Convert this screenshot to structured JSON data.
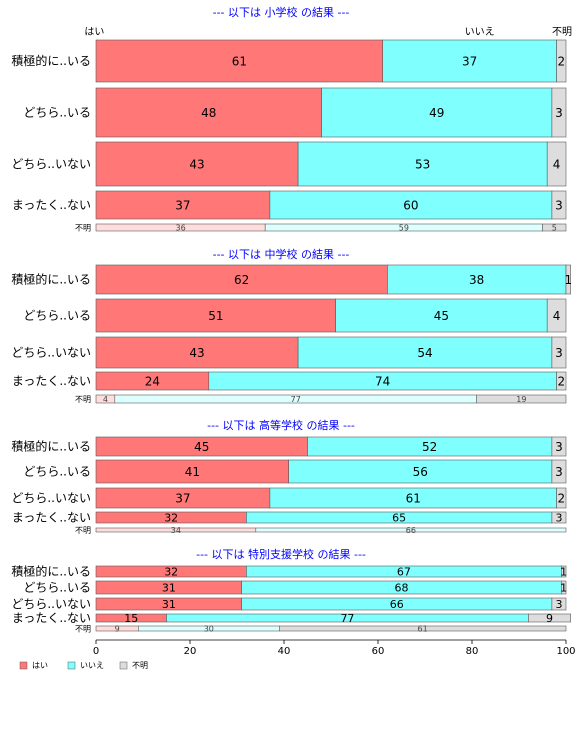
{
  "chart_data": {
    "type": "bar",
    "orientation": "horizontal",
    "stacked": true,
    "percent": true,
    "columns": [
      "はい",
      "いいえ",
      "不明"
    ],
    "colors": {
      "はい": "#ff7777",
      "いいえ": "#80ffff",
      "不明": "#dddddd",
      "title": "#0000ff",
      "text": "#000000"
    },
    "xlim": [
      0,
      100
    ],
    "xticks": [
      0,
      20,
      40,
      60,
      80,
      100
    ],
    "legend": {
      "position": "bottom-left",
      "items": [
        "はい",
        "いいえ",
        "不明"
      ]
    },
    "panels": [
      {
        "title": "--- 以下は 小学校 の結果 ---",
        "header_labels": [
          "はい",
          "いいえ",
          "不明"
        ],
        "rows": [
          {
            "label": "積極的に..いる",
            "values": [
              61,
              37,
              2
            ]
          },
          {
            "label": "どちら..いる",
            "values": [
              48,
              49,
              3
            ]
          },
          {
            "label": "どちら..いない",
            "values": [
              43,
              53,
              4
            ]
          },
          {
            "label": "まったく..ない",
            "values": [
              37,
              60,
              3
            ]
          },
          {
            "label": "不明",
            "values": [
              36,
              59,
              5
            ]
          }
        ]
      },
      {
        "title": "--- 以下は 中学校 の結果 ---",
        "rows": [
          {
            "label": "積極的に..いる",
            "values": [
              62,
              38,
              1
            ]
          },
          {
            "label": "どちら..いる",
            "values": [
              51,
              45,
              4
            ]
          },
          {
            "label": "どちら..いない",
            "values": [
              43,
              54,
              3
            ]
          },
          {
            "label": "まったく..ない",
            "values": [
              24,
              74,
              2
            ]
          },
          {
            "label": "不明",
            "values": [
              4,
              77,
              19
            ]
          }
        ]
      },
      {
        "title": "--- 以下は 高等学校 の結果 ---",
        "rows": [
          {
            "label": "積極的に..いる",
            "values": [
              45,
              52,
              3
            ]
          },
          {
            "label": "どちら..いる",
            "values": [
              41,
              56,
              3
            ]
          },
          {
            "label": "どちら..いない",
            "values": [
              37,
              61,
              2
            ]
          },
          {
            "label": "まったく..ない",
            "values": [
              32,
              65,
              3
            ]
          },
          {
            "label": "不明",
            "values": [
              34,
              66,
              0
            ]
          }
        ]
      },
      {
        "title": "--- 以下は 特別支援学校 の結果 ---",
        "rows": [
          {
            "label": "積極的に..いる",
            "values": [
              32,
              67,
              1
            ]
          },
          {
            "label": "どちら..いる",
            "values": [
              31,
              68,
              1
            ]
          },
          {
            "label": "どちら..いない",
            "values": [
              31,
              66,
              3
            ]
          },
          {
            "label": "まったく..ない",
            "values": [
              15,
              77,
              9
            ]
          },
          {
            "label": "不明",
            "values": [
              9,
              30,
              61
            ]
          }
        ]
      }
    ]
  }
}
